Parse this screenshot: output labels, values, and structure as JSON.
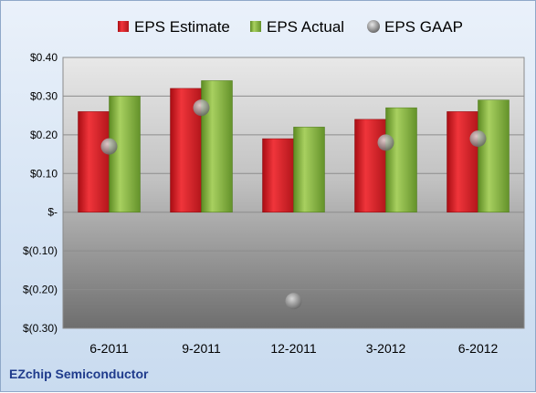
{
  "chart_data": {
    "type": "bar",
    "title": "",
    "xlabel": "",
    "ylabel": "",
    "ylim": [
      -0.3,
      0.4
    ],
    "y_ticks": [
      0.4,
      0.3,
      0.2,
      0.1,
      0.0,
      -0.1,
      -0.2,
      -0.3
    ],
    "y_tick_labels": [
      "$0.40",
      "$0.30",
      "$0.20",
      "$0.10",
      "$-",
      "$(0.10)",
      "$(0.20)",
      "$(0.30)"
    ],
    "categories": [
      "6-2011",
      "9-2011",
      "12-2011",
      "3-2012",
      "6-2012"
    ],
    "series": [
      {
        "name": "EPS Estimate",
        "type": "bar",
        "color": "#d9242a",
        "values": [
          0.26,
          0.32,
          0.19,
          0.24,
          0.26
        ]
      },
      {
        "name": "EPS Actual",
        "type": "bar",
        "color": "#7fab3c",
        "values": [
          0.3,
          0.34,
          0.22,
          0.27,
          0.29
        ]
      },
      {
        "name": "EPS GAAP",
        "type": "scatter",
        "color": "#9a9a9a",
        "values": [
          0.17,
          0.27,
          -0.23,
          0.18,
          0.19
        ]
      }
    ],
    "legend_position": "top",
    "grid": true
  },
  "footer": {
    "company": "EZchip Semiconductor"
  }
}
